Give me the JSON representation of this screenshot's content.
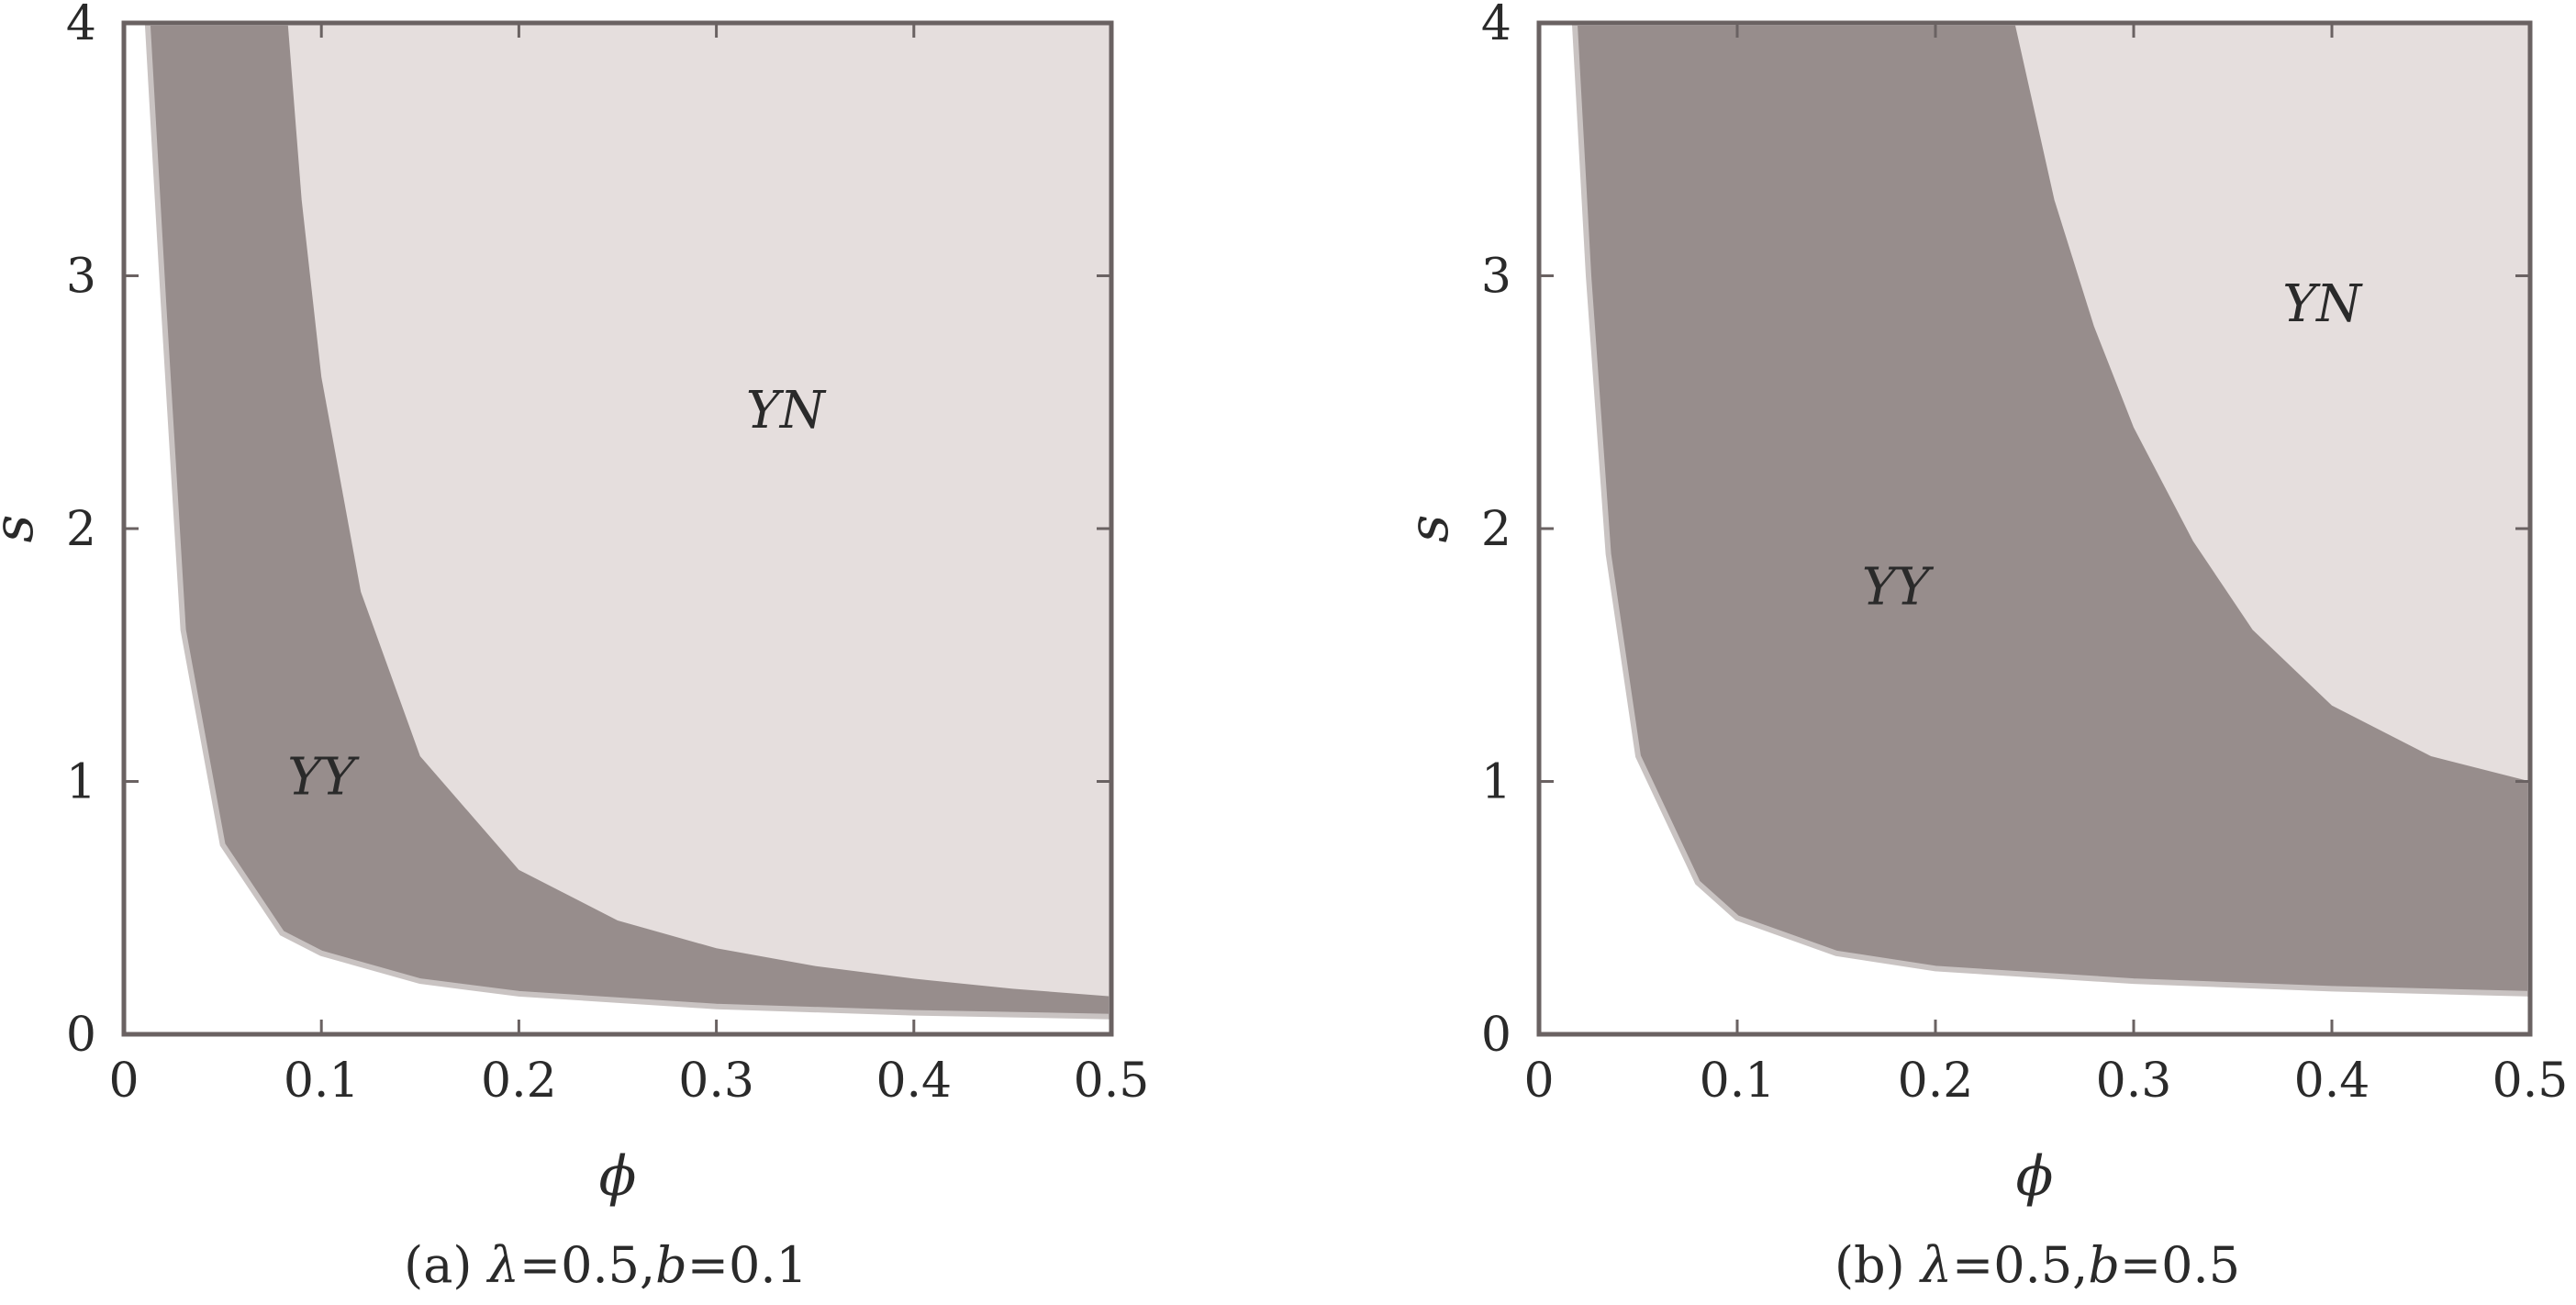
{
  "chart_data": [
    {
      "type": "area",
      "caption": {
        "panel": "(a) ",
        "lambda_symbol": "λ",
        "lambda_value": "=0.5,",
        "b_symbol": "b",
        "b_value": "=0.1"
      },
      "xlabel": "ϕ",
      "ylabel": "s",
      "xlim": [
        0,
        0.5
      ],
      "ylim": [
        0,
        4
      ],
      "xticks": [
        "0",
        "0.1",
        "0.2",
        "0.3",
        "0.4",
        "0.5"
      ],
      "yticks": [
        "0",
        "1",
        "2",
        "3",
        "4"
      ],
      "lower_boundary": {
        "phi": [
          0.012,
          0.02,
          0.03,
          0.05,
          0.08,
          0.1,
          0.15,
          0.2,
          0.3,
          0.4,
          0.5
        ],
        "s": [
          4.0,
          2.9,
          1.6,
          0.75,
          0.4,
          0.32,
          0.21,
          0.16,
          0.11,
          0.085,
          0.07
        ]
      },
      "upper_boundary": {
        "phi": [
          0.083,
          0.09,
          0.1,
          0.12,
          0.15,
          0.2,
          0.25,
          0.3,
          0.35,
          0.4,
          0.45,
          0.5
        ],
        "s": [
          4.0,
          3.3,
          2.6,
          1.75,
          1.1,
          0.65,
          0.45,
          0.34,
          0.27,
          0.22,
          0.18,
          0.15
        ]
      },
      "regions": [
        {
          "name": "YY",
          "x": 0.1,
          "y": 0.95,
          "color": "#978d8c"
        },
        {
          "name": "YN",
          "x": 0.335,
          "y": 2.4,
          "color": "#e5dedd"
        }
      ]
    },
    {
      "type": "area",
      "caption": {
        "panel": "(b) ",
        "lambda_symbol": "λ",
        "lambda_value": "=0.5,",
        "b_symbol": "b",
        "b_value": "=0.5"
      },
      "xlabel": "ϕ",
      "ylabel": "s",
      "xlim": [
        0,
        0.5
      ],
      "ylim": [
        0,
        4
      ],
      "xticks": [
        "0",
        "0.1",
        "0.2",
        "0.3",
        "0.4",
        "0.5"
      ],
      "yticks": [
        "0",
        "1",
        "2",
        "3",
        "4"
      ],
      "lower_boundary": {
        "phi": [
          0.018,
          0.025,
          0.035,
          0.05,
          0.08,
          0.1,
          0.15,
          0.2,
          0.3,
          0.4,
          0.5
        ],
        "s": [
          4.0,
          3.0,
          1.9,
          1.1,
          0.6,
          0.46,
          0.32,
          0.26,
          0.21,
          0.18,
          0.16
        ]
      },
      "upper_boundary": {
        "phi": [
          0.24,
          0.26,
          0.28,
          0.3,
          0.33,
          0.36,
          0.4,
          0.45,
          0.5
        ],
        "s": [
          4.0,
          3.3,
          2.8,
          2.4,
          1.95,
          1.6,
          1.3,
          1.1,
          1.0
        ]
      },
      "regions": [
        {
          "name": "YY",
          "x": 0.18,
          "y": 1.7,
          "color": "#978d8c"
        },
        {
          "name": "YN",
          "x": 0.395,
          "y": 2.82,
          "color": "#e5dedd"
        }
      ]
    }
  ]
}
